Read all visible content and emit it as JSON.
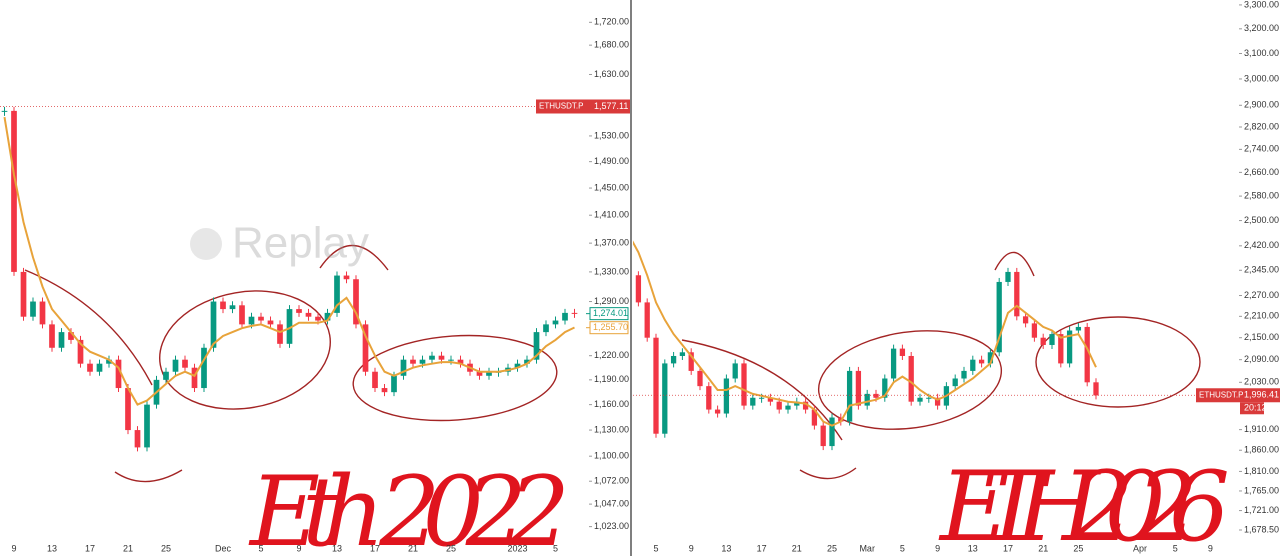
{
  "chart_data": [
    {
      "type": "candlestick",
      "log_scale": true,
      "symbol": "ETHUSDT.P",
      "watermark": "Replay",
      "annotation": "Eth 2022",
      "categories": [
        null,
        "9",
        null,
        null,
        null,
        "13",
        null,
        null,
        null,
        "17",
        null,
        null,
        null,
        "21",
        null,
        null,
        null,
        "25",
        null,
        null,
        null,
        null,
        null,
        "Dec",
        null,
        null,
        null,
        "5",
        null,
        null,
        null,
        "9",
        null,
        null,
        null,
        "13",
        null,
        null,
        null,
        "17",
        null,
        null,
        null,
        "21",
        null,
        null,
        null,
        "25",
        null,
        null,
        null,
        null,
        null,
        null,
        "2023",
        null,
        null,
        null,
        "5",
        null,
        null
      ],
      "series": [
        {
          "color": "#089981",
          "down_color": "#f23645",
          "values": [
            1570,
            1330,
            1270,
            1290,
            1260,
            1230,
            1250,
            1240,
            1210,
            1200,
            1210,
            1215,
            1180,
            1130,
            1110,
            1160,
            1190,
            1200,
            1215,
            1205,
            1180,
            1230,
            1290,
            1280,
            1285,
            1260,
            1270,
            1265,
            1260,
            1235,
            1280,
            1275,
            1270,
            1265,
            1275,
            1325,
            1320,
            1260,
            1200,
            1180,
            1175,
            1195,
            1215,
            1210,
            1215,
            1220,
            1215,
            1215,
            1210,
            1200,
            1195,
            1200,
            1200,
            1205,
            1210,
            1215,
            1250,
            1260,
            1265,
            1275,
            1274
          ]
        },
        {
          "color": "#e8a33a",
          "values": [
            1560,
            1470,
            1400,
            1350,
            1310,
            1280,
            1265,
            1250,
            1235,
            1225,
            1220,
            1215,
            1205,
            1180,
            1160,
            1165,
            1175,
            1185,
            1195,
            1200,
            1195,
            1215,
            1235,
            1245,
            1250,
            1255,
            1258,
            1260,
            1255,
            1250,
            1255,
            1262,
            1262,
            1262,
            1265,
            1285,
            1295,
            1275,
            1245,
            1220,
            1200,
            1195,
            1200,
            1205,
            1208,
            1210,
            1212,
            1212,
            1210,
            1205,
            1200,
            1200,
            1200,
            1202,
            1205,
            1210,
            1220,
            1232,
            1240,
            1250,
            1256
          ]
        }
      ],
      "ylim": [
        1009,
        1760
      ],
      "yticks": [
        {
          "value": 1720,
          "label": "1,720.00"
        },
        {
          "value": 1680,
          "label": "1,680.00"
        },
        {
          "value": 1630,
          "label": "1,630.00"
        },
        {
          "value": 1530,
          "label": "1,530.00"
        },
        {
          "value": 1490,
          "label": "1,490.00"
        },
        {
          "value": 1450,
          "label": "1,450.00"
        },
        {
          "value": 1410,
          "label": "1,410.00"
        },
        {
          "value": 1370,
          "label": "1,370.00"
        },
        {
          "value": 1330,
          "label": "1,330.00"
        },
        {
          "value": 1290,
          "label": "1,290.00"
        },
        {
          "value": 1220,
          "label": "1,220.00"
        },
        {
          "value": 1190,
          "label": "1,190.00"
        },
        {
          "value": 1160,
          "label": "1,160.00"
        },
        {
          "value": 1130,
          "label": "1,130.00"
        },
        {
          "value": 1100,
          "label": "1,100.00"
        },
        {
          "value": 1072,
          "label": "1,072.00"
        },
        {
          "value": 1047,
          "label": "1,047.00"
        },
        {
          "value": 1023,
          "label": "1,023.00"
        }
      ],
      "price_labels": [
        {
          "value": 1577.11,
          "label": "1,577.11",
          "color": "#d93a3a"
        },
        {
          "value": 1274.01,
          "label": "1,274.01",
          "color": "#089981"
        },
        {
          "value": 1255.7,
          "label": "1,255.70",
          "color": "#e8a33a"
        }
      ]
    },
    {
      "type": "candlestick",
      "log_scale": true,
      "symbol": "ETHUSDT.P",
      "annotation": "ETH 2026",
      "timer": "20:12",
      "categories": [
        null,
        null,
        null,
        "5",
        null,
        null,
        null,
        "9",
        null,
        null,
        null,
        "13",
        null,
        null,
        null,
        "17",
        null,
        null,
        null,
        "21",
        null,
        null,
        null,
        "25",
        null,
        null,
        null,
        "Mar",
        null,
        null,
        null,
        "5",
        null,
        null,
        null,
        "9",
        null,
        null,
        null,
        "13",
        null,
        null,
        null,
        "17",
        null,
        null,
        null,
        "21",
        null,
        null,
        null,
        "25",
        null,
        null,
        null,
        null,
        null,
        null,
        "Apr",
        null,
        null,
        null,
        "5",
        null,
        null,
        null,
        "9"
      ],
      "series": [
        {
          "color": "#089981",
          "down_color": "#f23645",
          "values": [
            2330,
            2250,
            2150,
            1900,
            2080,
            2100,
            2110,
            2060,
            2020,
            1960,
            1950,
            2040,
            2080,
            1970,
            1990,
            1990,
            1980,
            1960,
            1970,
            1980,
            1960,
            1920,
            1870,
            1940,
            1930,
            2060,
            1970,
            2000,
            1990,
            2040,
            2120,
            2100,
            1980,
            1990,
            1990,
            1970,
            2020,
            2040,
            2060,
            2090,
            2080,
            2110,
            2310,
            2340,
            2210,
            2190,
            2150,
            2130,
            2160,
            2080,
            2170,
            2180,
            2030,
            1996,
            null,
            null,
            null,
            null,
            null,
            null,
            null,
            null,
            null,
            null,
            null,
            null,
            null
          ]
        },
        {
          "color": "#e8a33a",
          "values": [
            2450,
            2400,
            2330,
            2250,
            2200,
            2160,
            2130,
            2100,
            2070,
            2040,
            2010,
            2010,
            2020,
            2010,
            2000,
            1995,
            1990,
            1985,
            1980,
            1978,
            1975,
            1960,
            1930,
            1920,
            1930,
            1970,
            1975,
            1980,
            1985,
            1995,
            2030,
            2045,
            2030,
            2010,
            1995,
            1985,
            1995,
            2010,
            2025,
            2040,
            2060,
            2080,
            2150,
            2220,
            2240,
            2220,
            2200,
            2180,
            2170,
            2150,
            2155,
            2160,
            2120,
            2070,
            null,
            null,
            null,
            null,
            null,
            null,
            null,
            null,
            null,
            null,
            null,
            null,
            null
          ]
        }
      ],
      "ylim": [
        1657,
        3321
      ],
      "yticks": [
        {
          "value": 3300,
          "label": "3,300.00"
        },
        {
          "value": 3200,
          "label": "3,200.00"
        },
        {
          "value": 3100,
          "label": "3,100.00"
        },
        {
          "value": 3000,
          "label": "3,000.00"
        },
        {
          "value": 2900,
          "label": "2,900.00"
        },
        {
          "value": 2820,
          "label": "2,820.00"
        },
        {
          "value": 2740,
          "label": "2,740.00"
        },
        {
          "value": 2660,
          "label": "2,660.00"
        },
        {
          "value": 2580,
          "label": "2,580.00"
        },
        {
          "value": 2500,
          "label": "2,500.00"
        },
        {
          "value": 2420,
          "label": "2,420.00"
        },
        {
          "value": 2345,
          "label": "2,345.00"
        },
        {
          "value": 2270,
          "label": "2,270.00"
        },
        {
          "value": 2210,
          "label": "2,210.00"
        },
        {
          "value": 2150,
          "label": "2,150.00"
        },
        {
          "value": 2090,
          "label": "2,090.00"
        },
        {
          "value": 2030,
          "label": "2,030.00"
        },
        {
          "value": 1910,
          "label": "1,910.00"
        },
        {
          "value": 1860,
          "label": "1,860.00"
        },
        {
          "value": 1810,
          "label": "1,810.00"
        },
        {
          "value": 1765,
          "label": "1,765.00"
        },
        {
          "value": 1721,
          "label": "1,721.00"
        },
        {
          "value": 1678.5,
          "label": "1,678.50"
        }
      ],
      "price_labels": [
        {
          "value": 1996.41,
          "label": "1,996.41",
          "color": "#d93a3a"
        }
      ]
    }
  ]
}
